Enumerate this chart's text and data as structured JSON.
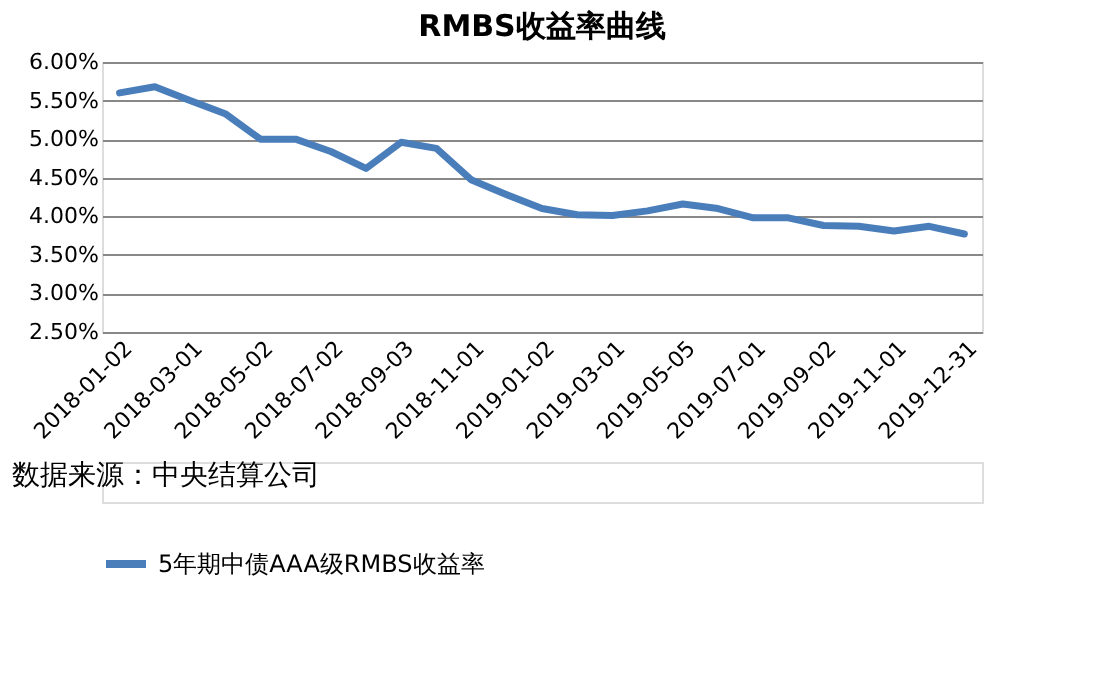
{
  "chart_data": {
    "type": "line",
    "title": "RMBS收益率曲线",
    "categories": [
      "2018-01-02",
      null,
      "2018-03-01",
      null,
      "2018-05-02",
      null,
      "2018-07-02",
      null,
      "2018-09-03",
      null,
      "2018-11-01",
      null,
      "2019-01-02",
      null,
      "2019-03-01",
      null,
      "2019-05-05",
      null,
      "2019-07-01",
      null,
      "2019-09-02",
      null,
      "2019-11-01",
      null,
      "2019-12-31"
    ],
    "series": [
      {
        "name": "5年期中债AAA级RMBS收益率",
        "color": "#4a7ebb",
        "values": [
          5.6,
          5.68,
          5.5,
          5.33,
          5.0,
          5.0,
          4.84,
          4.62,
          4.96,
          4.88,
          4.47,
          4.28,
          4.1,
          4.02,
          4.01,
          4.07,
          4.16,
          4.1,
          3.98,
          3.98,
          3.88,
          3.87,
          3.81,
          3.87,
          3.77
        ]
      }
    ],
    "ylim": [
      2.5,
      6.0
    ],
    "yticks": [
      {
        "value": 2.5,
        "label": "2.50%"
      },
      {
        "value": 3.0,
        "label": "3.00%"
      },
      {
        "value": 3.5,
        "label": "3.50%"
      },
      {
        "value": 4.0,
        "label": "4.00%"
      },
      {
        "value": 4.5,
        "label": "4.50%"
      },
      {
        "value": 5.0,
        "label": "5.00%"
      },
      {
        "value": 5.5,
        "label": "5.50%"
      },
      {
        "value": 6.0,
        "label": "6.00%"
      }
    ],
    "grid": "y",
    "legend": "bottom",
    "marker": "none",
    "line_style": "solid",
    "annotations": [
      "数据来源：中央结算公司"
    ]
  }
}
